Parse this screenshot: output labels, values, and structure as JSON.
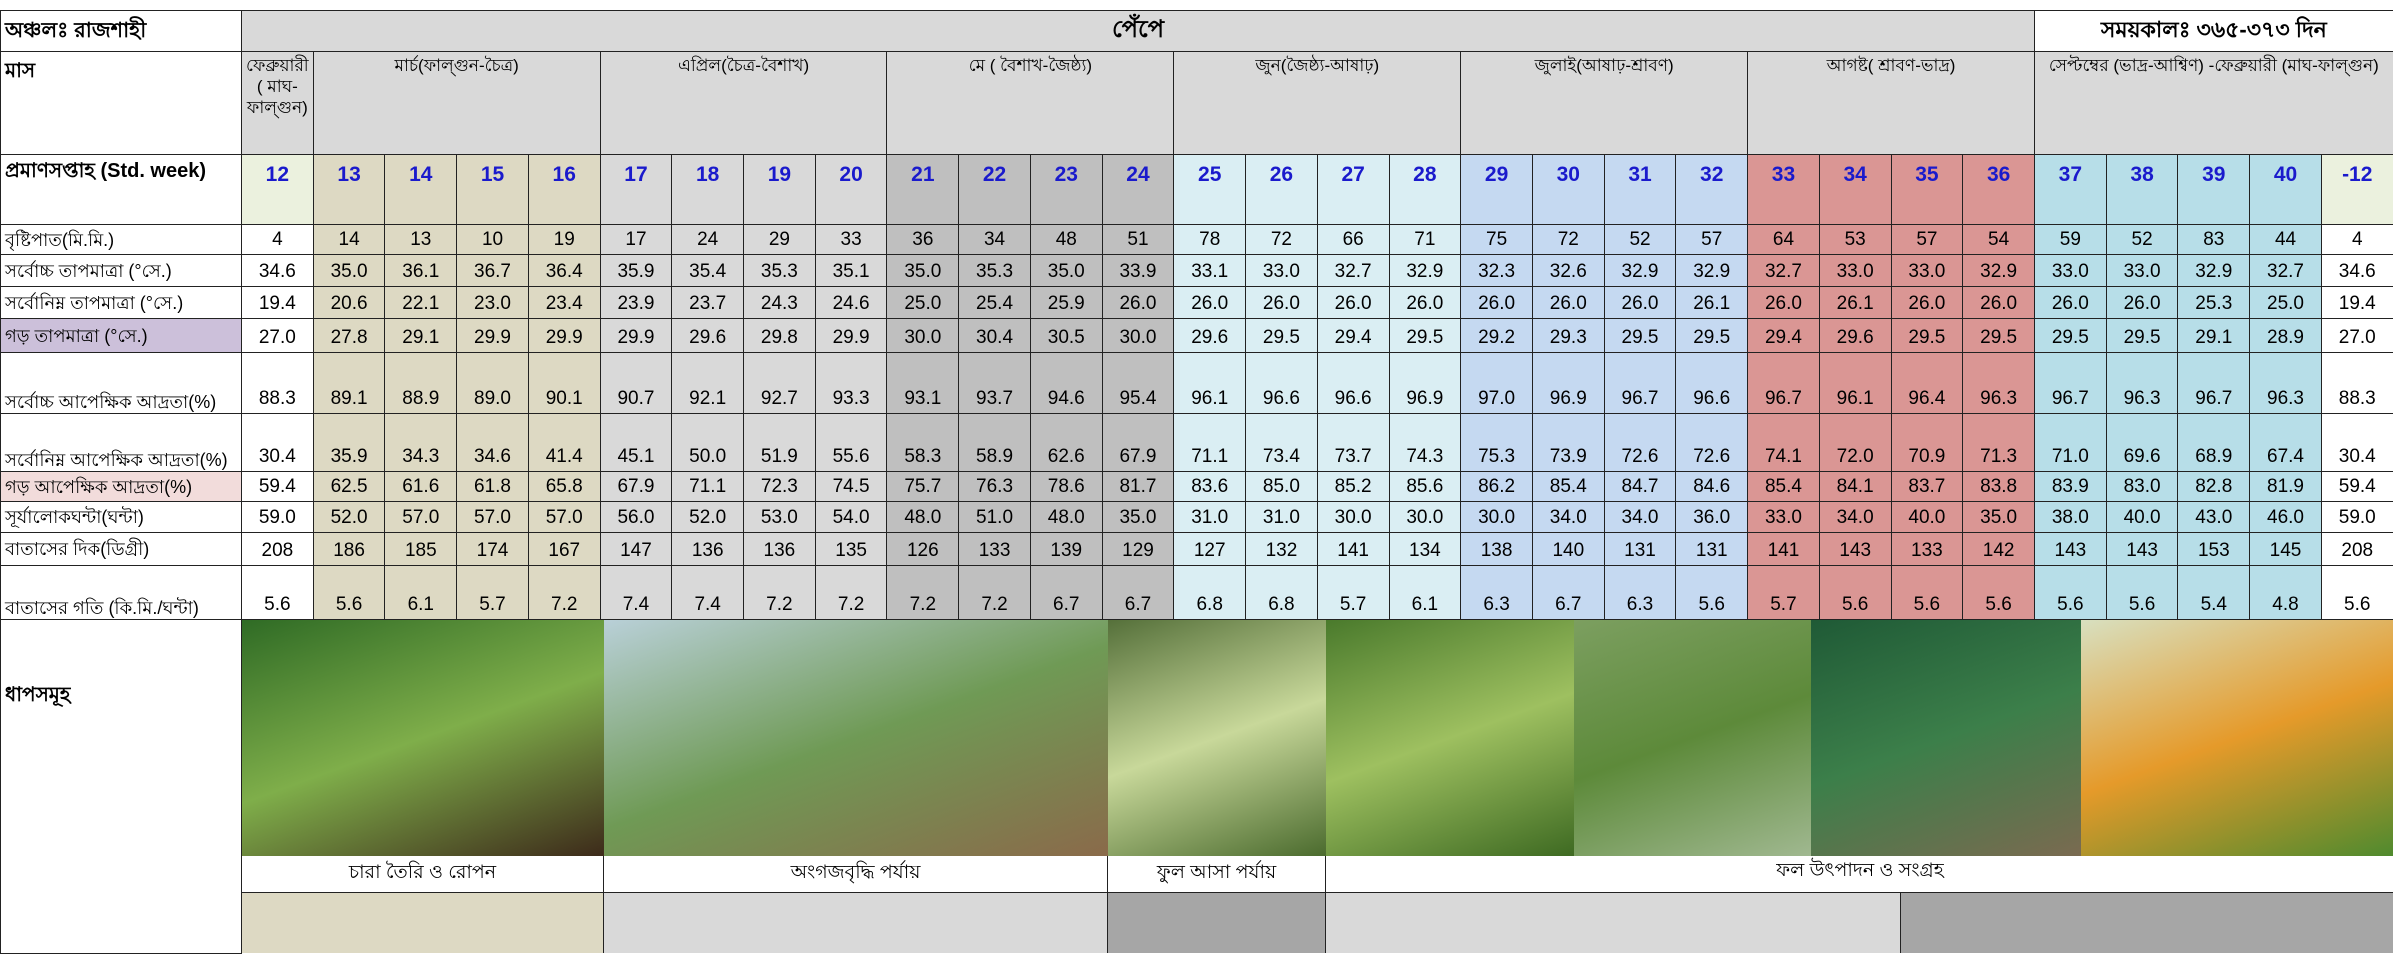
{
  "header": {
    "region": "অঞ্চলঃ রাজশাহী",
    "crop": "পেঁপে",
    "period": "সময়কালঃ ৩৬৫-৩৭৩ দিন"
  },
  "months": {
    "label": "মাস",
    "groups": [
      "ফেব্রুয়ারী ( মাঘ-ফাল্গুন)",
      "মার্চ(ফাল্গুন-চৈত্র)",
      "এপ্রিল(চৈত্র-বৈশাখ)",
      "মে ( বৈশাখ-জৈষ্ঠ্য)",
      "জুন(জৈষ্ঠ্য-আষাঢ়)",
      "জুলাই(আষাঢ়-শ্রাবণ)",
      "আগষ্ট( শ্রাবণ-ভাদ্র)",
      "সেপ্টম্বের (ভাদ্র-আশ্বিণ) -ফেব্রুয়ারী (মাঘ-ফাল্গুন)"
    ]
  },
  "weeks": {
    "label": "প্রমাণসপ্তাহ (Std. week)",
    "values": [
      "12",
      "13",
      "14",
      "15",
      "16",
      "17",
      "18",
      "19",
      "20",
      "21",
      "22",
      "23",
      "24",
      "25",
      "26",
      "27",
      "28",
      "29",
      "30",
      "31",
      "32",
      "33",
      "34",
      "35",
      "36",
      "37",
      "38",
      "39",
      "40",
      "-12"
    ]
  },
  "rows": [
    {
      "label": "বৃষ্টিপাত(মি.মি.)",
      "values": [
        "4",
        "14",
        "13",
        "10",
        "19",
        "17",
        "24",
        "29",
        "33",
        "36",
        "34",
        "48",
        "51",
        "78",
        "72",
        "66",
        "71",
        "75",
        "72",
        "52",
        "57",
        "64",
        "53",
        "57",
        "54",
        "59",
        "52",
        "83",
        "44",
        "4"
      ]
    },
    {
      "label": "সর্বোচ্চ তাপমাত্রা (°সে.)",
      "values": [
        "34.6",
        "35.0",
        "36.1",
        "36.7",
        "36.4",
        "35.9",
        "35.4",
        "35.3",
        "35.1",
        "35.0",
        "35.3",
        "35.0",
        "33.9",
        "33.1",
        "33.0",
        "32.7",
        "32.9",
        "32.3",
        "32.6",
        "32.9",
        "32.9",
        "32.7",
        "33.0",
        "33.0",
        "32.9",
        "33.0",
        "33.0",
        "32.9",
        "32.7",
        "34.6"
      ]
    },
    {
      "label": "সর্বোনিম্ন তাপমাত্রা (°সে.)",
      "values": [
        "19.4",
        "20.6",
        "22.1",
        "23.0",
        "23.4",
        "23.9",
        "23.7",
        "24.3",
        "24.6",
        "25.0",
        "25.4",
        "25.9",
        "26.0",
        "26.0",
        "26.0",
        "26.0",
        "26.0",
        "26.0",
        "26.0",
        "26.0",
        "26.1",
        "26.0",
        "26.1",
        "26.0",
        "26.0",
        "26.0",
        "26.0",
        "25.3",
        "25.0",
        "19.4"
      ]
    },
    {
      "label": "গড় তাপমাত্রা (°সে.)",
      "values": [
        "27.0",
        "27.8",
        "29.1",
        "29.9",
        "29.9",
        "29.9",
        "29.6",
        "29.8",
        "29.9",
        "30.0",
        "30.4",
        "30.5",
        "30.0",
        "29.6",
        "29.5",
        "29.4",
        "29.5",
        "29.2",
        "29.3",
        "29.5",
        "29.5",
        "29.4",
        "29.6",
        "29.5",
        "29.5",
        "29.5",
        "29.5",
        "29.1",
        "28.9",
        "27.0"
      ]
    },
    {
      "label": "সর্বোচ্চ আপেক্ষিক আদ্রতা(%)",
      "values": [
        "88.3",
        "89.1",
        "88.9",
        "89.0",
        "90.1",
        "90.7",
        "92.1",
        "92.7",
        "93.3",
        "93.1",
        "93.7",
        "94.6",
        "95.4",
        "96.1",
        "96.6",
        "96.6",
        "96.9",
        "97.0",
        "96.9",
        "96.7",
        "96.6",
        "96.7",
        "96.1",
        "96.4",
        "96.3",
        "96.7",
        "96.3",
        "96.7",
        "96.3",
        "88.3"
      ]
    },
    {
      "label": "সর্বোনিম্ন আপেক্ষিক আদ্রতা(%)",
      "values": [
        "30.4",
        "35.9",
        "34.3",
        "34.6",
        "41.4",
        "45.1",
        "50.0",
        "51.9",
        "55.6",
        "58.3",
        "58.9",
        "62.6",
        "67.9",
        "71.1",
        "73.4",
        "73.7",
        "74.3",
        "75.3",
        "73.9",
        "72.6",
        "72.6",
        "74.1",
        "72.0",
        "70.9",
        "71.3",
        "71.0",
        "69.6",
        "68.9",
        "67.4",
        "30.4"
      ]
    },
    {
      "label": "গড় আপেক্ষিক আদ্রতা(%)",
      "values": [
        "59.4",
        "62.5",
        "61.6",
        "61.8",
        "65.8",
        "67.9",
        "71.1",
        "72.3",
        "74.5",
        "75.7",
        "76.3",
        "78.6",
        "81.7",
        "83.6",
        "85.0",
        "85.2",
        "85.6",
        "86.2",
        "85.4",
        "84.7",
        "84.6",
        "85.4",
        "84.1",
        "83.7",
        "83.8",
        "83.9",
        "83.0",
        "82.8",
        "81.9",
        "59.4"
      ]
    },
    {
      "label": "সূর্যালোকঘন্টা(ঘন্টা)",
      "values": [
        "59.0",
        "52.0",
        "57.0",
        "57.0",
        "57.0",
        "56.0",
        "52.0",
        "53.0",
        "54.0",
        "48.0",
        "51.0",
        "48.0",
        "35.0",
        "31.0",
        "31.0",
        "30.0",
        "30.0",
        "30.0",
        "34.0",
        "34.0",
        "36.0",
        "33.0",
        "34.0",
        "40.0",
        "35.0",
        "38.0",
        "40.0",
        "43.0",
        "46.0",
        "59.0"
      ]
    },
    {
      "label": "বাতাসের দিক(ডিগ্রী)",
      "values": [
        "208",
        "186",
        "185",
        "174",
        "167",
        "147",
        "136",
        "136",
        "135",
        "126",
        "133",
        "139",
        "129",
        "127",
        "132",
        "141",
        "134",
        "138",
        "140",
        "131",
        "131",
        "141",
        "143",
        "133",
        "142",
        "143",
        "143",
        "153",
        "145",
        "208"
      ]
    },
    {
      "label": "বাতাসের গতি (কি.মি./ঘন্টা)",
      "values": [
        "5.6",
        "5.6",
        "6.1",
        "5.7",
        "7.2",
        "7.4",
        "7.4",
        "7.2",
        "7.2",
        "7.2",
        "7.2",
        "6.7",
        "6.7",
        "6.8",
        "6.8",
        "5.7",
        "6.1",
        "6.3",
        "6.7",
        "6.3",
        "5.6",
        "5.7",
        "5.6",
        "5.6",
        "5.6",
        "5.6",
        "5.6",
        "5.4",
        "4.8",
        "5.6"
      ]
    }
  ],
  "stages": {
    "label": "ধাপসমূহ",
    "captions": [
      "চারা তৈরি ও রোপন",
      "অংগজবৃদ্ধি পর্যায়",
      "ফুল আসা  পর্যায়",
      "ফল উৎপাদন ও সংগ্রহ"
    ]
  }
}
